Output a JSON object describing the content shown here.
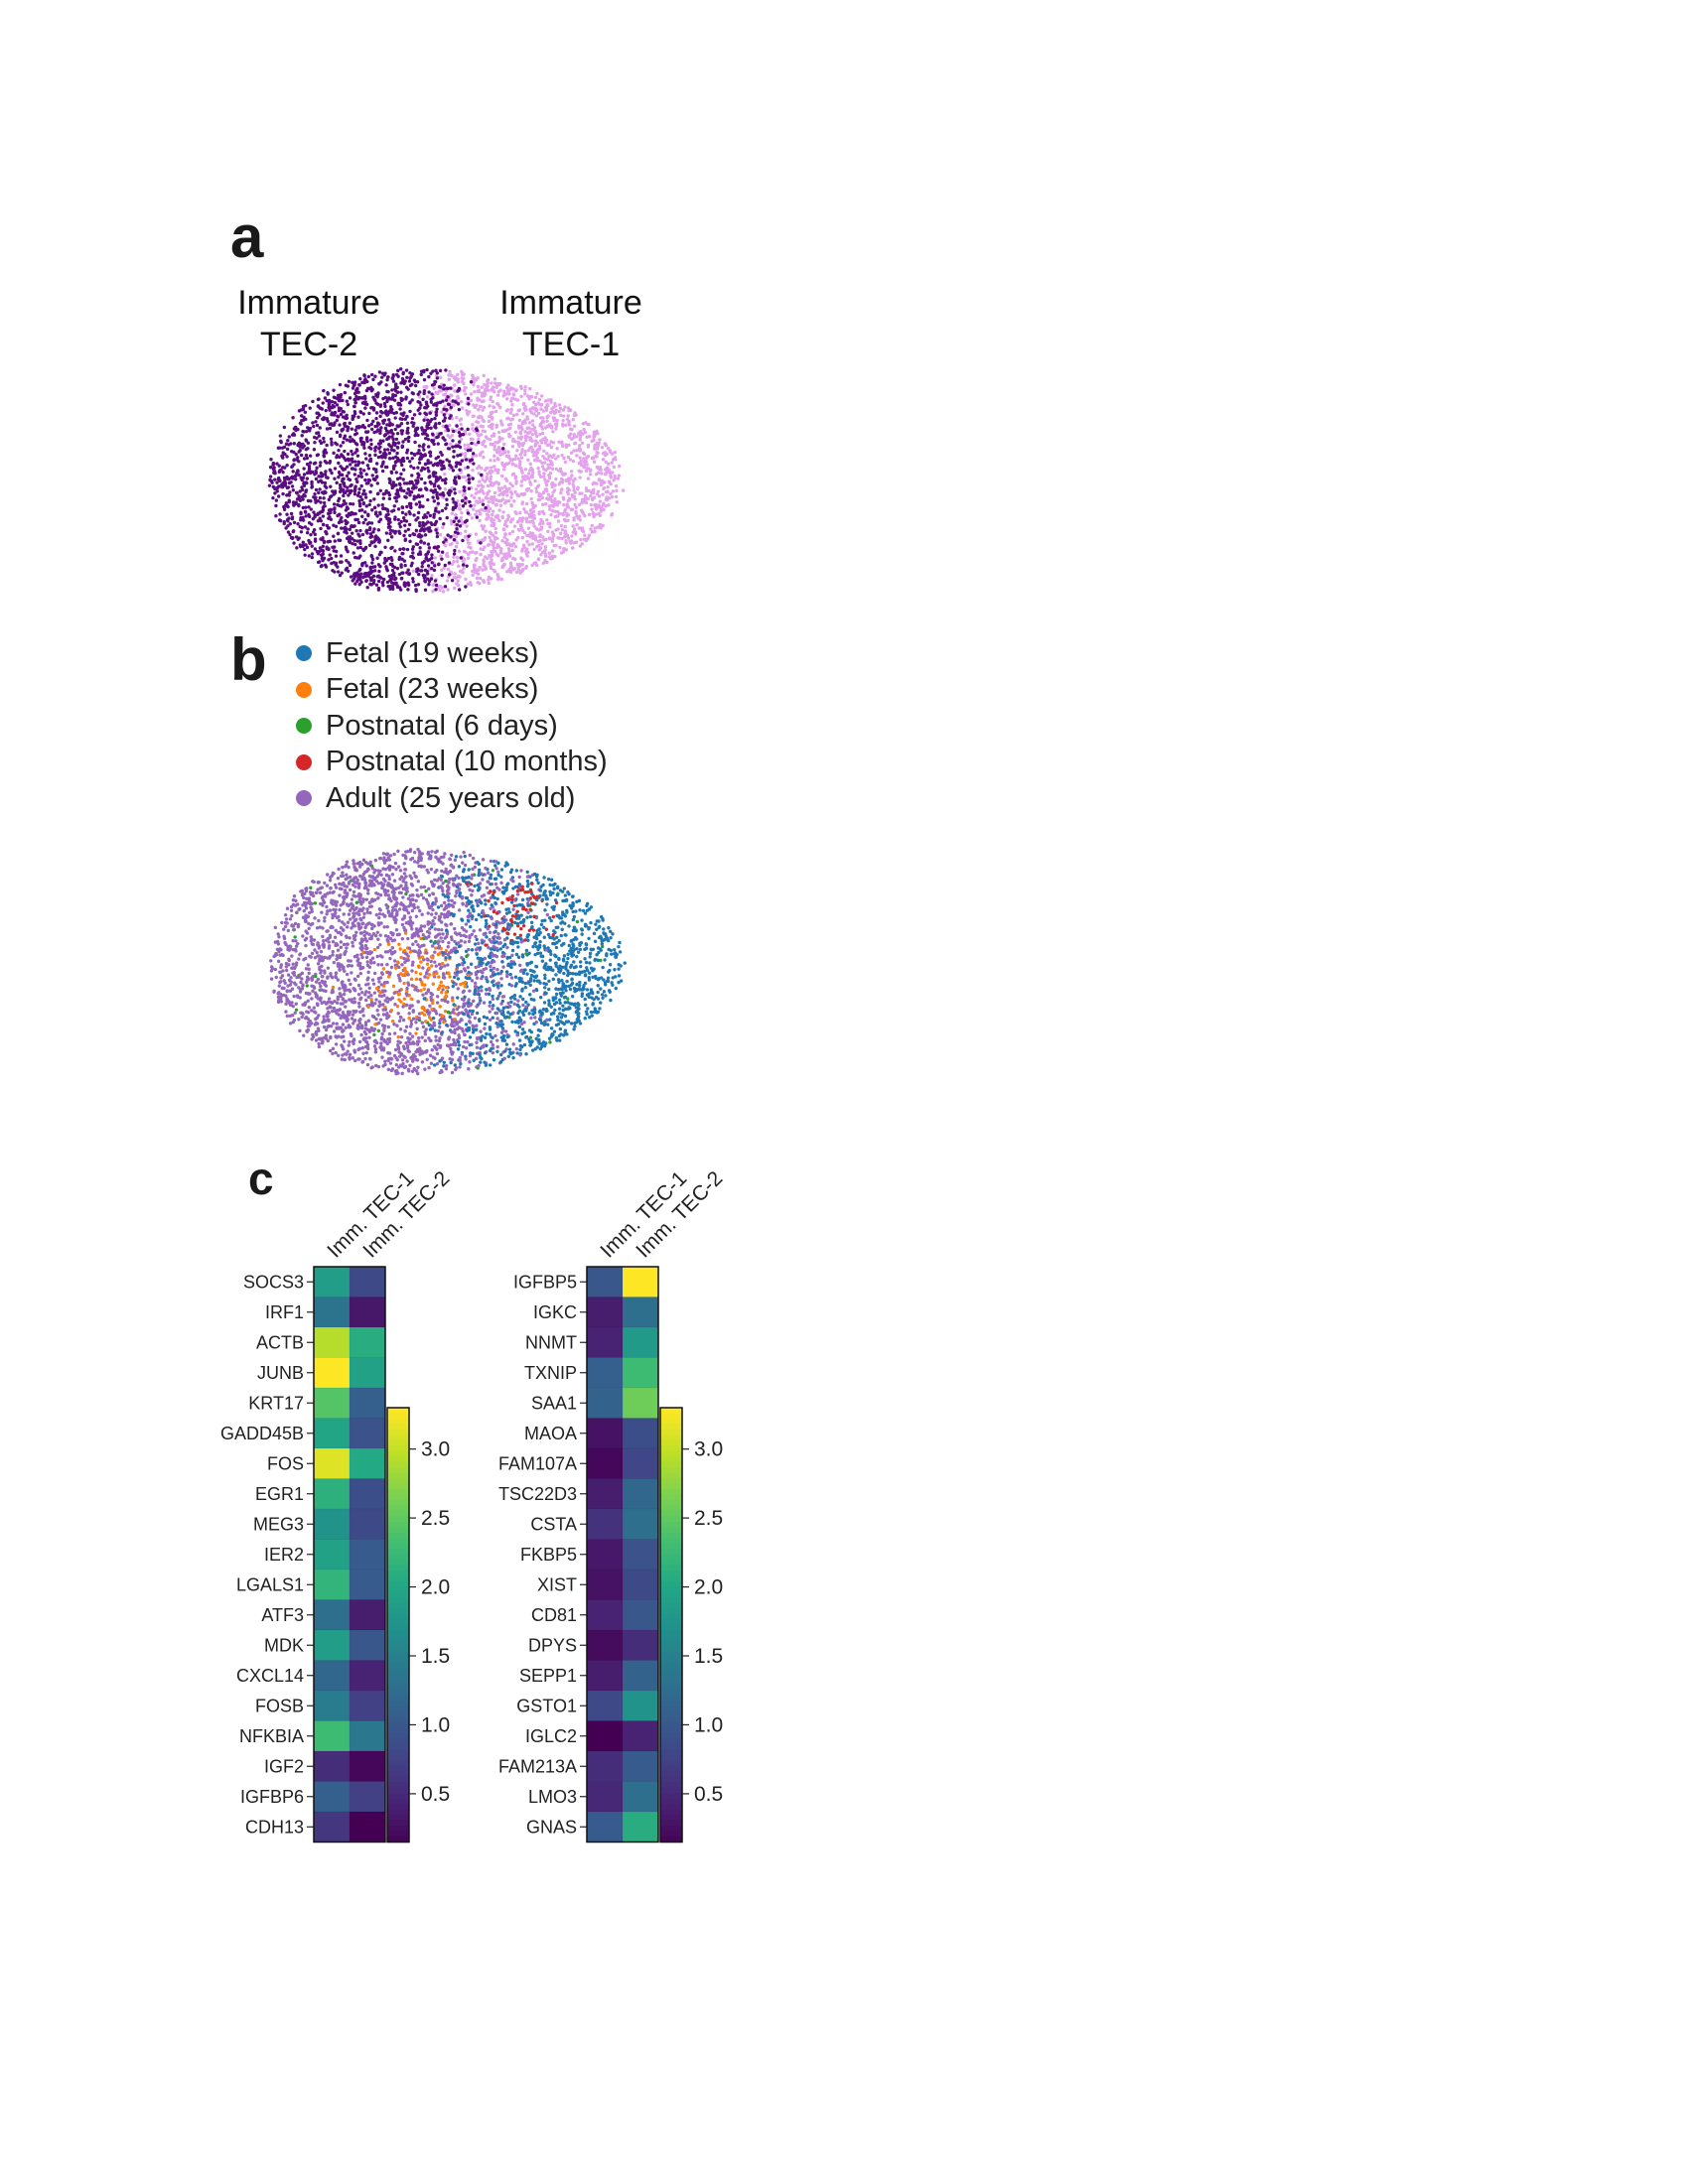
{
  "panels": {
    "a": {
      "letter": "a",
      "labels": [
        {
          "text": "Immature TEC-2",
          "line1": "Immature",
          "line2": "TEC-2"
        },
        {
          "text": "Immature TEC-1",
          "line1": "Immature",
          "line2": "TEC-1"
        }
      ],
      "colors": {
        "imm_tec_2": "#5a0d80",
        "imm_tec_1": "#e3a2ec"
      }
    },
    "b": {
      "letter": "b",
      "legend": [
        {
          "label": "Fetal (19 weeks)",
          "color": "#1f77b4"
        },
        {
          "label": "Fetal (23 weeks)",
          "color": "#ff7f0e"
        },
        {
          "label": "Postnatal (6 days)",
          "color": "#2ca02c"
        },
        {
          "label": "Postnatal (10 months)",
          "color": "#d62728"
        },
        {
          "label": "Adult (25 years old)",
          "color": "#9467bd"
        }
      ]
    },
    "c": {
      "letter": "c"
    }
  },
  "chart_data": [
    {
      "type": "scatter",
      "panel": "a",
      "title": "",
      "xlabel": "",
      "ylabel": "",
      "series": [
        {
          "name": "Immature TEC-2",
          "color": "#5a0d80"
        },
        {
          "name": "Immature TEC-1",
          "color": "#e3a2ec"
        }
      ],
      "grid": false,
      "axes": false
    },
    {
      "type": "scatter",
      "panel": "b",
      "title": "",
      "xlabel": "",
      "ylabel": "",
      "series": [
        {
          "name": "Fetal (19 weeks)",
          "color": "#1f77b4"
        },
        {
          "name": "Fetal (23 weeks)",
          "color": "#ff7f0e"
        },
        {
          "name": "Postnatal (6 days)",
          "color": "#2ca02c"
        },
        {
          "name": "Postnatal (10 months)",
          "color": "#d62728"
        },
        {
          "name": "Adult (25 years old)",
          "color": "#9467bd"
        }
      ],
      "legend": "top-left",
      "grid": false,
      "axes": false
    },
    {
      "type": "heatmap",
      "panel": "c-left",
      "columns": [
        "Imm. TEC-1",
        "Imm. TEC-2"
      ],
      "rows": [
        "SOCS3",
        "IRF1",
        "ACTB",
        "JUNB",
        "KRT17",
        "GADD45B",
        "FOS",
        "EGR1",
        "MEG3",
        "IER2",
        "LGALS1",
        "ATF3",
        "MDK",
        "CXCL14",
        "FOSB",
        "NFKBIA",
        "IGF2",
        "IGFBP6",
        "CDH13"
      ],
      "values": [
        [
          1.9,
          0.85
        ],
        [
          1.35,
          0.35
        ],
        [
          2.95,
          2.1
        ],
        [
          3.35,
          1.95
        ],
        [
          2.45,
          1.1
        ],
        [
          2.0,
          0.95
        ],
        [
          3.15,
          2.05
        ],
        [
          2.15,
          0.9
        ],
        [
          1.75,
          0.85
        ],
        [
          1.95,
          1.05
        ],
        [
          2.2,
          1.05
        ],
        [
          1.3,
          0.4
        ],
        [
          1.9,
          1.0
        ],
        [
          1.2,
          0.45
        ],
        [
          1.45,
          0.75
        ],
        [
          2.3,
          1.4
        ],
        [
          0.55,
          0.2
        ],
        [
          1.1,
          0.75
        ],
        [
          0.65,
          0.15
        ]
      ],
      "colorbar": {
        "vmin": 0.15,
        "vmax": 3.3,
        "ticks": [
          0.5,
          1.0,
          1.5,
          2.0,
          2.5,
          3.0
        ],
        "tick_labels": [
          "0.5",
          "1.0",
          "1.5",
          "2.0",
          "2.5",
          "3.0"
        ],
        "cmap": "viridis"
      }
    },
    {
      "type": "heatmap",
      "panel": "c-right",
      "columns": [
        "Imm. TEC-1",
        "Imm. TEC-2"
      ],
      "rows": [
        "IGFBP5",
        "IGKC",
        "NNMT",
        "TXNIP",
        "SAA1",
        "MAOA",
        "FAM107A",
        "TSC22D3",
        "CSTA",
        "FKBP5",
        "XIST",
        "CD81",
        "DPYS",
        "SEPP1",
        "GSTO1",
        "IGLC2",
        "FAM213A",
        "LMO3",
        "GNAS"
      ],
      "values": [
        [
          1.0,
          3.3
        ],
        [
          0.4,
          1.3
        ],
        [
          0.45,
          1.85
        ],
        [
          1.1,
          2.3
        ],
        [
          1.15,
          2.6
        ],
        [
          0.3,
          0.9
        ],
        [
          0.2,
          0.8
        ],
        [
          0.4,
          1.2
        ],
        [
          0.6,
          1.3
        ],
        [
          0.35,
          0.95
        ],
        [
          0.3,
          0.85
        ],
        [
          0.45,
          1.0
        ],
        [
          0.25,
          0.55
        ],
        [
          0.4,
          1.15
        ],
        [
          0.85,
          1.75
        ],
        [
          0.15,
          0.45
        ],
        [
          0.55,
          1.05
        ],
        [
          0.5,
          1.3
        ],
        [
          1.05,
          2.1
        ]
      ],
      "colorbar": {
        "vmin": 0.15,
        "vmax": 3.3,
        "ticks": [
          0.5,
          1.0,
          1.5,
          2.0,
          2.5,
          3.0
        ],
        "tick_labels": [
          "0.5",
          "1.0",
          "1.5",
          "2.0",
          "2.5",
          "3.0"
        ],
        "cmap": "viridis"
      }
    }
  ]
}
